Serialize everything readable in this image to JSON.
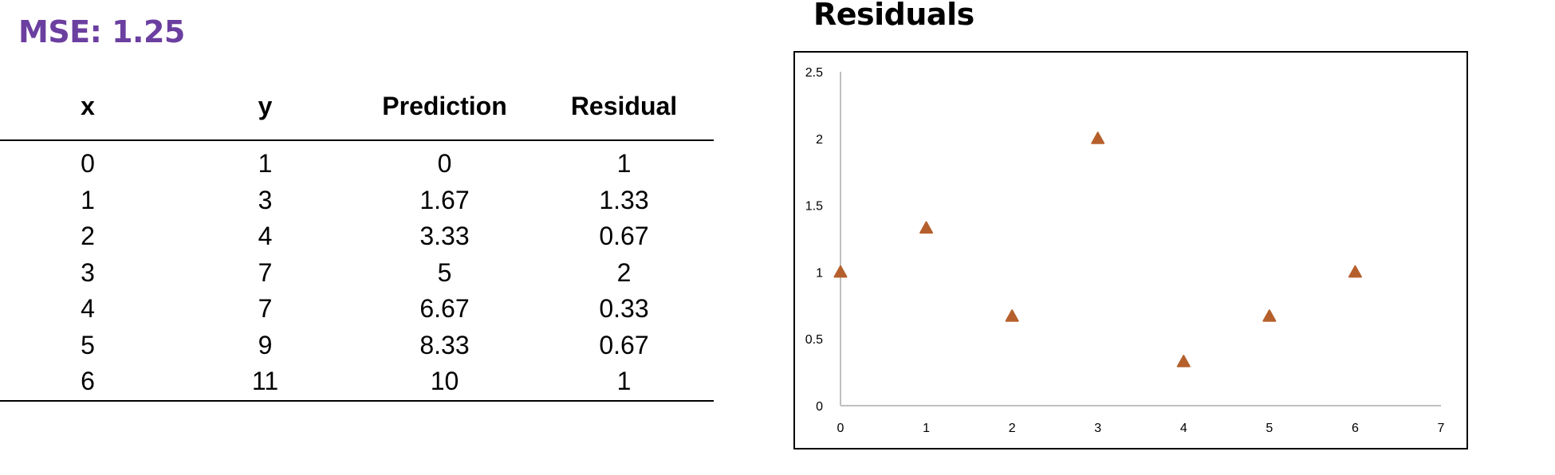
{
  "mse_label": "MSE: 1.25",
  "table": {
    "headers": [
      "x",
      "y",
      "Prediction",
      "Residual"
    ],
    "rows": [
      [
        "0",
        "1",
        "0",
        "1"
      ],
      [
        "1",
        "3",
        "1.67",
        "1.33"
      ],
      [
        "2",
        "4",
        "3.33",
        "0.67"
      ],
      [
        "3",
        "7",
        "5",
        "2"
      ],
      [
        "4",
        "7",
        "6.67",
        "0.33"
      ],
      [
        "5",
        "9",
        "8.33",
        "0.67"
      ],
      [
        "6",
        "11",
        "10",
        "1"
      ]
    ]
  },
  "chart_data": {
    "type": "scatter",
    "title": "Residuals",
    "x": [
      0,
      1,
      2,
      3,
      4,
      5,
      6
    ],
    "y": [
      1,
      1.33,
      0.67,
      2,
      0.33,
      0.67,
      1
    ],
    "xlim": [
      0,
      7
    ],
    "ylim": [
      0,
      2.5
    ],
    "xticks": [
      "0",
      "1",
      "2",
      "3",
      "4",
      "5",
      "6",
      "7"
    ],
    "yticks": [
      "0",
      "0.5",
      "1",
      "1.5",
      "2",
      "2.5"
    ],
    "marker": "triangle",
    "marker_color": "#B5602C",
    "axis_color": "#BFBFBF",
    "grid": false,
    "legend": "none"
  }
}
